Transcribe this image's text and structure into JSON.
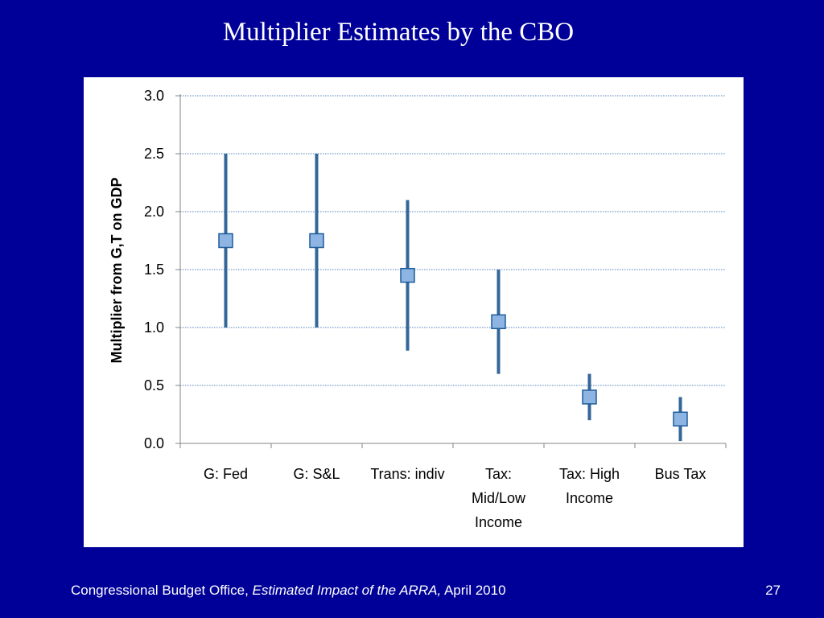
{
  "slide": {
    "title": "Multiplier Estimates by the CBO",
    "footer": {
      "prefix": "Congressional Budget Office, ",
      "italic": "Estimated Impact of the ARRA,",
      "suffix": " April 2010"
    },
    "page_number": "27"
  },
  "colors": {
    "background": "#000099",
    "range_line": "#336699",
    "marker_fill": "#8DB4E2",
    "marker_stroke": "#1F5C99",
    "gridline": "#4F81BD"
  },
  "chart_data": {
    "type": "scatter",
    "title": "",
    "xlabel": "",
    "ylabel": "Multiplier from G,T on GDP",
    "ylim": [
      0,
      3.0
    ],
    "yticks": [
      "0.0",
      "0.5",
      "1.0",
      "1.5",
      "2.0",
      "2.5",
      "3.0"
    ],
    "ytick_values": [
      0,
      0.5,
      1.0,
      1.5,
      2.0,
      2.5,
      3.0
    ],
    "grid": "horizontal dotted",
    "categories": [
      "G: Fed",
      "G: S&L",
      "Trans: indiv",
      "Tax: Mid/Low Income",
      "Tax: High Income",
      "Bus Tax"
    ],
    "category_lines": [
      [
        "G: Fed"
      ],
      [
        "G: S&L"
      ],
      [
        "Trans: indiv"
      ],
      [
        "Tax:",
        "Mid/Low",
        "Income"
      ],
      [
        "Tax: High",
        "Income"
      ],
      [
        "Bus Tax"
      ]
    ],
    "series": [
      {
        "values": [
          1.75,
          1.75,
          1.45,
          1.05,
          0.4,
          0.21
        ]
      }
    ],
    "low": [
      1.0,
      1.0,
      0.8,
      0.6,
      0.2,
      0.02
    ],
    "high": [
      2.5,
      2.5,
      2.1,
      1.5,
      0.6,
      0.4
    ]
  }
}
